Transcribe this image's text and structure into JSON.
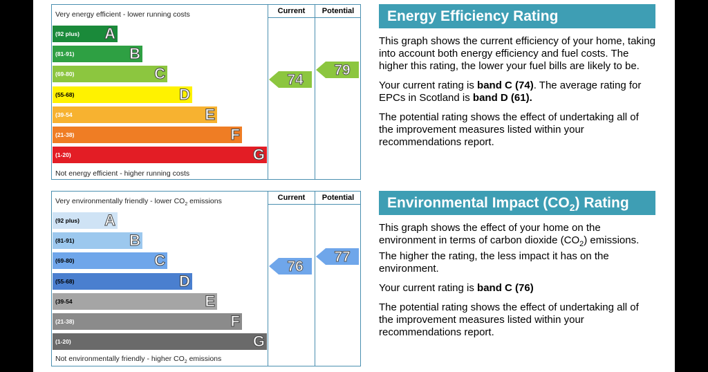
{
  "energy_chart": {
    "top_label": "Very energy efficient - lower running costs",
    "bottom_label": "Not energy efficient - higher running costs",
    "col_current": "Current",
    "col_potential": "Potential",
    "bands": [
      {
        "range": "(92 plus)",
        "letter": "A",
        "color": "#1a8a3a",
        "text_color": "#ffffff"
      },
      {
        "range": "(81-91)",
        "letter": "B",
        "color": "#2ea043",
        "text_color": "#ffffff"
      },
      {
        "range": "(69-80)",
        "letter": "C",
        "color": "#8cc63f",
        "text_color": "#ffffff"
      },
      {
        "range": "(55-68)",
        "letter": "D",
        "color": "#fff200",
        "text_color": "#000000"
      },
      {
        "range": "(39-54",
        "letter": "E",
        "color": "#f7b230",
        "text_color": "#ffffff"
      },
      {
        "range": "(21-38)",
        "letter": "F",
        "color": "#ef7d24",
        "text_color": "#ffffff"
      },
      {
        "range": "(1-20)",
        "letter": "G",
        "color": "#e31d25",
        "text_color": "#ffffff"
      }
    ],
    "current": {
      "value": "74",
      "band_index": 2,
      "color": "#8cc63f"
    },
    "potential": {
      "value": "79",
      "band_index": 2,
      "color": "#8cc63f"
    }
  },
  "impact_chart": {
    "top_label_pre": "Very environmentally friendly - lower CO",
    "top_label_sub": "2",
    "top_label_post": " emissions",
    "bottom_label_pre": "Not environmentally friendly - higher CO",
    "bottom_label_sub": "2",
    "bottom_label_post": " emissions",
    "col_current": "Current",
    "col_potential": "Potential",
    "bands": [
      {
        "range": "(92 plus)",
        "letter": "A",
        "color": "#cfe3f5",
        "text_color": "#000000"
      },
      {
        "range": "(81-91)",
        "letter": "B",
        "color": "#9cc8ee",
        "text_color": "#000000"
      },
      {
        "range": "(69-80)",
        "letter": "C",
        "color": "#6fa6ea",
        "text_color": "#000000"
      },
      {
        "range": "(55-68)",
        "letter": "D",
        "color": "#4a7fcf",
        "text_color": "#000000"
      },
      {
        "range": "(39-54",
        "letter": "E",
        "color": "#a5a5a5",
        "text_color": "#000000"
      },
      {
        "range": "(21-38)",
        "letter": "F",
        "color": "#8b8b8b",
        "text_color": "#ffffff"
      },
      {
        "range": "(1-20)",
        "letter": "G",
        "color": "#6a6a6a",
        "text_color": "#ffffff"
      }
    ],
    "current": {
      "value": "76",
      "band_index": 2,
      "color": "#6fa6ea"
    },
    "potential": {
      "value": "77",
      "band_index": 2,
      "color": "#6fa6ea"
    }
  },
  "ee_panel": {
    "title": "Energy Efficiency Rating",
    "p1": "This graph shows the current efficiency of your home, taking into account both energy efficiency and fuel costs. The higher this rating, the lower your fuel bills are likely to be.",
    "p2_pre": "Your current rating is ",
    "p2_band": "band C (74)",
    "p2_mid": ". The average rating for EPCs in Scotland is ",
    "p2_avg": "band D (61).",
    "p3": "The potential rating shows the effect of undertaking all of the improvement measures listed within your recommendations report."
  },
  "ei_panel": {
    "title_pre": "Environmental Impact (CO",
    "title_sub": "2",
    "title_post": ") Rating",
    "p1_pre": "This graph shows the effect of your home on the environment in terms of carbon dioxide (CO",
    "p1_sub": "2",
    "p1_post": ") emissions. The higher the rating, the less impact it has on the environment.",
    "p2_pre": "Your current rating is ",
    "p2_band": "band C (76)",
    "p3": "The potential rating shows the effect of undertaking all of the improvement measures listed within your recommendations report."
  },
  "colors": {
    "accent": "#3e9eb4",
    "frame": "#4a8fb0"
  }
}
